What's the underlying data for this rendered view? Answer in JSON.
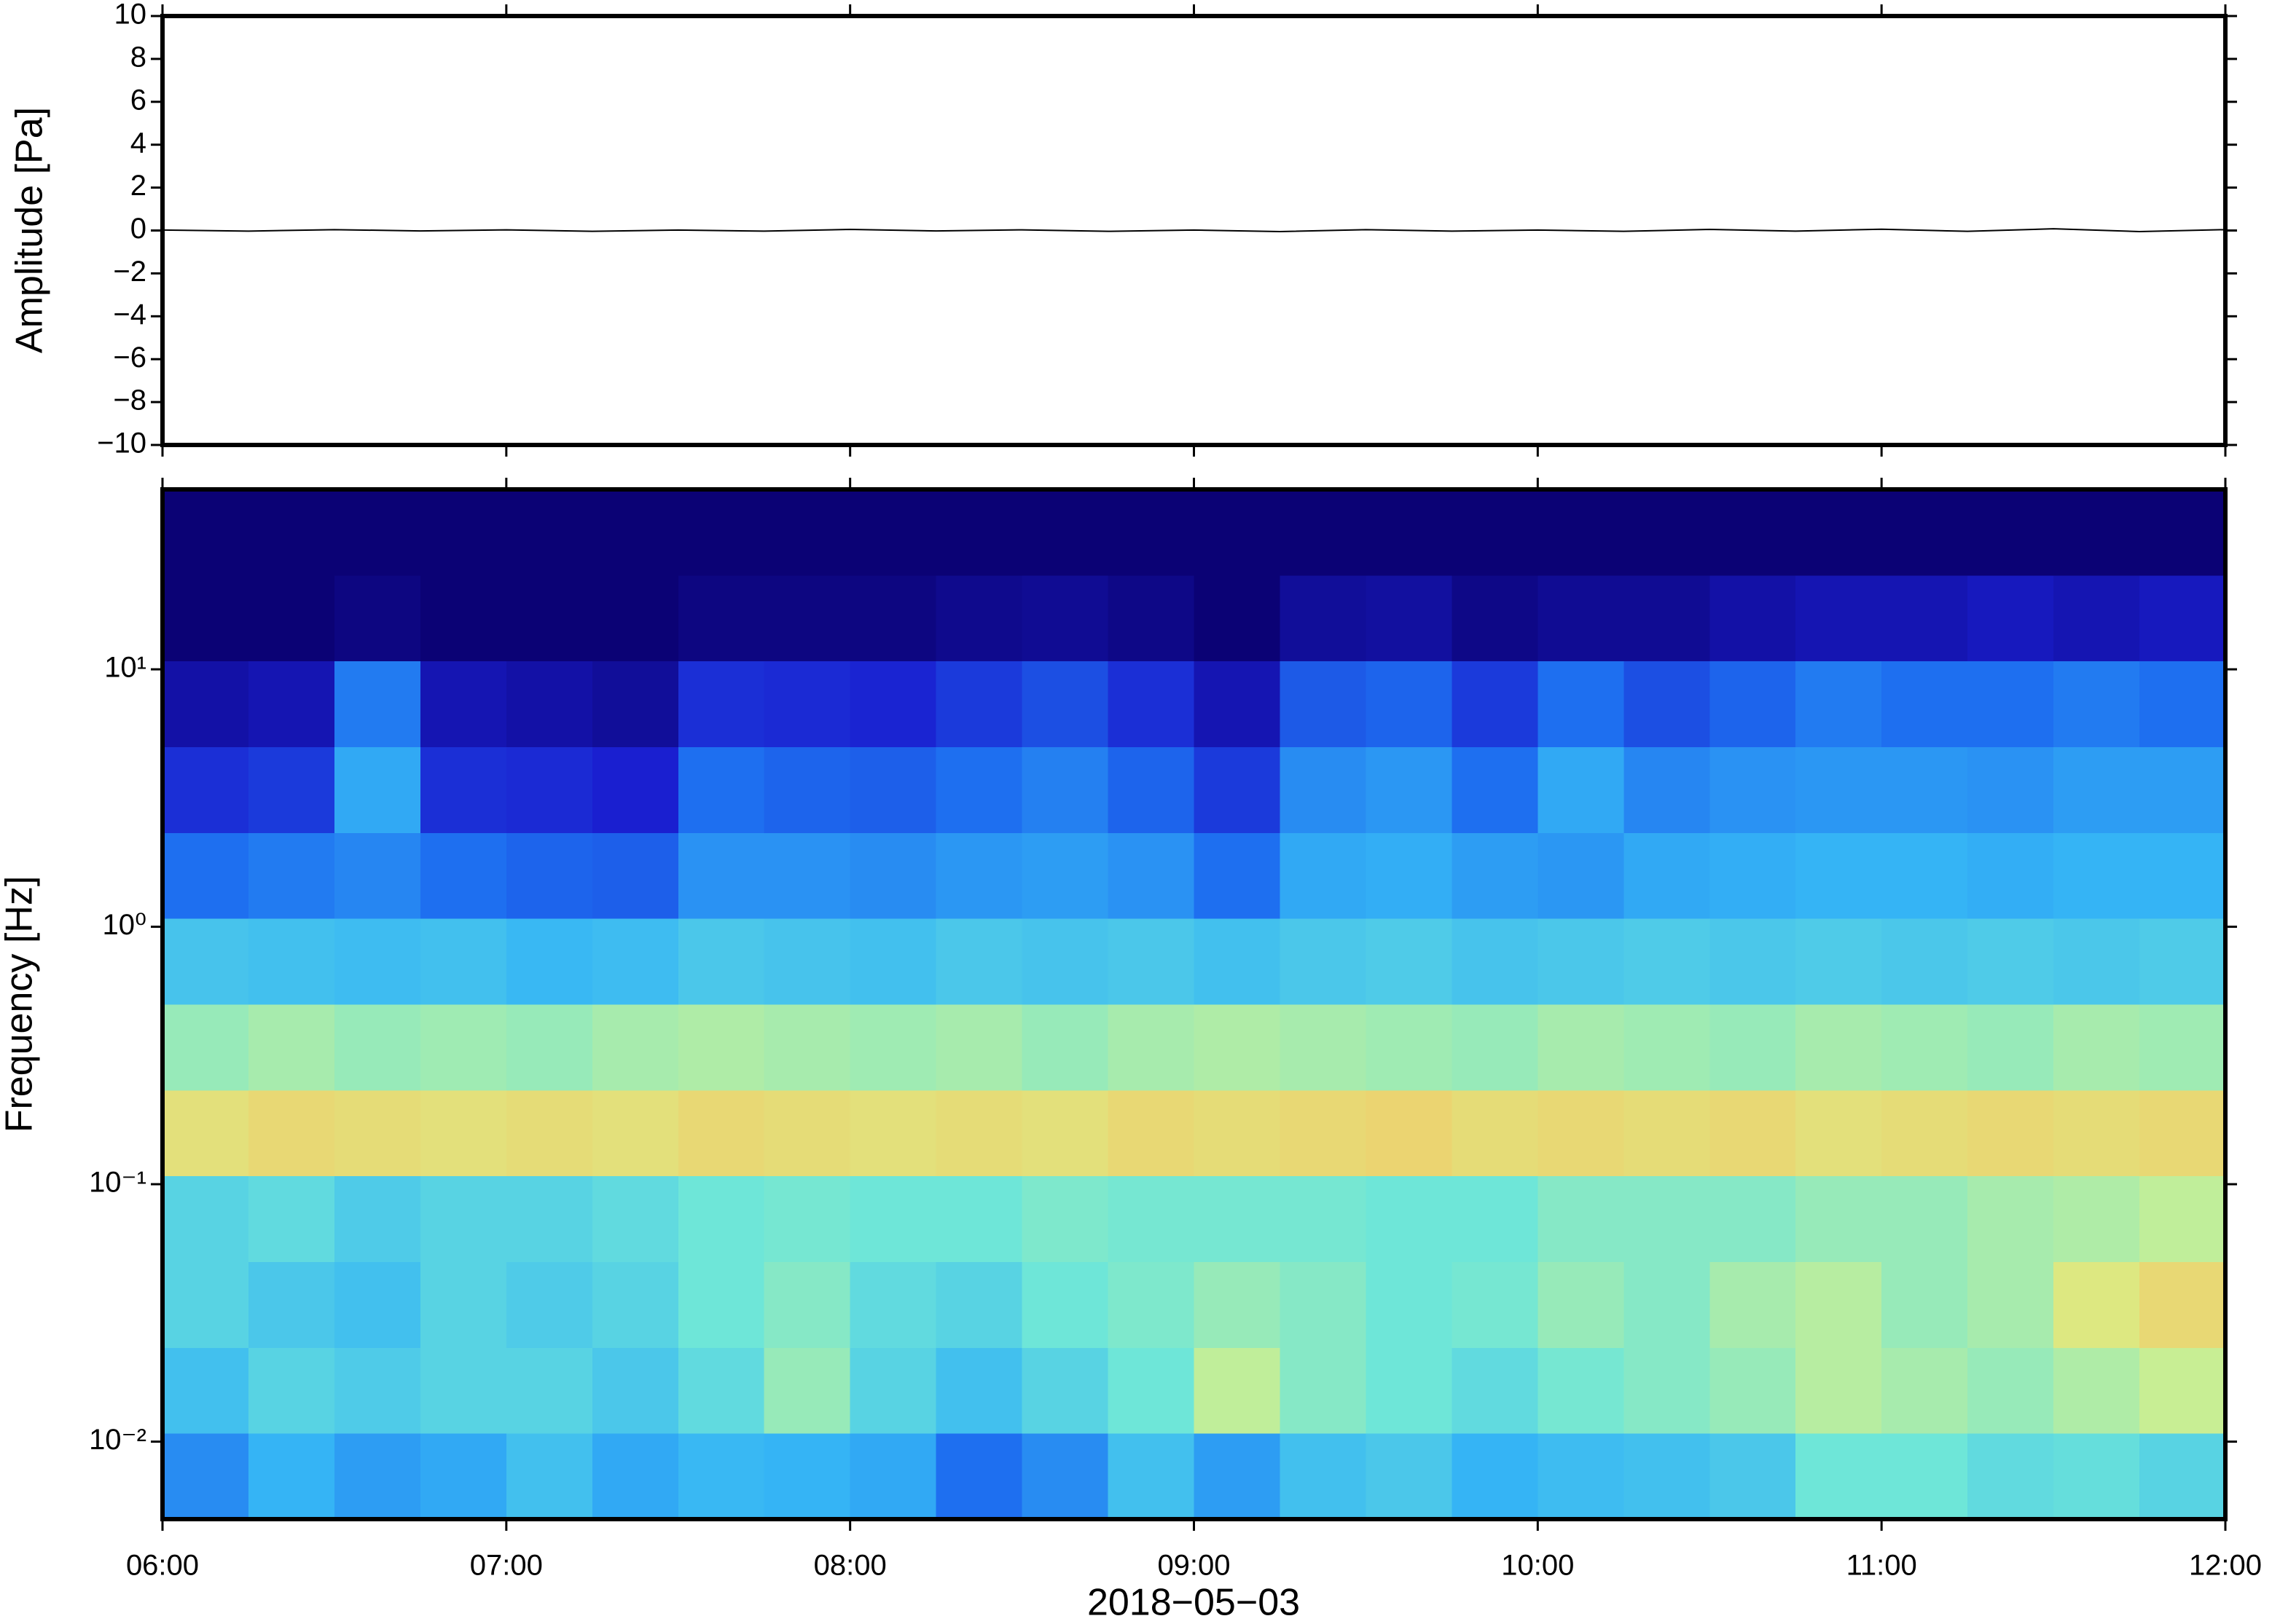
{
  "chart_data": [
    {
      "type": "line",
      "ylabel": "Amplitude [Pa]",
      "color": "#000000",
      "xlim": [
        6,
        12
      ],
      "ylim": [
        -10,
        10
      ],
      "yticks": [
        {
          "value": -10,
          "label": "−10"
        },
        {
          "value": -8,
          "label": "−8"
        },
        {
          "value": -6,
          "label": "−6"
        },
        {
          "value": -4,
          "label": "−4"
        },
        {
          "value": -2,
          "label": "−2"
        },
        0,
        2,
        4,
        6,
        8,
        10
      ],
      "x": [
        6,
        6.25,
        6.5,
        6.75,
        7,
        7.25,
        7.5,
        7.75,
        8,
        8.25,
        8.5,
        8.75,
        9,
        9.25,
        9.5,
        9.75,
        10,
        10.25,
        10.5,
        10.75,
        11,
        11.25,
        11.5,
        11.75,
        12
      ],
      "values": [
        0.02,
        -0.03,
        0.04,
        -0.02,
        0.03,
        -0.04,
        0.02,
        -0.03,
        0.05,
        -0.02,
        0.03,
        -0.04,
        0.02,
        -0.05,
        0.04,
        -0.03,
        0.02,
        -0.04,
        0.05,
        -0.03,
        0.06,
        -0.04,
        0.08,
        -0.05,
        0.04
      ]
    },
    {
      "type": "heatmap",
      "ylabel": "Frequency [Hz]",
      "xlabel": "2018−05−03",
      "log_y": true,
      "xlim": [
        6,
        12
      ],
      "ylim": [
        0.005,
        50
      ],
      "xticks": [
        {
          "value": 6,
          "label": "06:00"
        },
        {
          "value": 7,
          "label": "07:00"
        },
        {
          "value": 8,
          "label": "08:00"
        },
        {
          "value": 9,
          "label": "09:00"
        },
        {
          "value": 10,
          "label": "10:00"
        },
        {
          "value": 11,
          "label": "11:00"
        },
        {
          "value": 12,
          "label": "12:00"
        }
      ],
      "yticks": [
        {
          "value": 0.01,
          "label": "10⁻²"
        },
        {
          "value": 0.1,
          "label": "10⁻¹"
        },
        {
          "value": 1,
          "label": "10⁰"
        },
        {
          "value": 10,
          "label": "10¹"
        }
      ],
      "colormap": [
        [
          0,
          "#0b0275"
        ],
        [
          0.15,
          "#1a1fd0"
        ],
        [
          0.3,
          "#1e6ff0"
        ],
        [
          0.42,
          "#35b4f5"
        ],
        [
          0.55,
          "#6ee6d8"
        ],
        [
          0.68,
          "#d8f088"
        ],
        [
          0.8,
          "#f8c060"
        ],
        [
          0.9,
          "#f07040"
        ],
        [
          1,
          "#c01010"
        ]
      ],
      "xbins": [
        6,
        6.25,
        6.5,
        6.75,
        7,
        7.25,
        7.5,
        7.75,
        8,
        8.25,
        8.5,
        8.75,
        9,
        9.25,
        9.5,
        9.75,
        10,
        10.25,
        10.5,
        10.75,
        11,
        11.25,
        11.5,
        11.75,
        12
      ],
      "ybins": [
        0.005,
        0.0108,
        0.0232,
        0.05,
        0.108,
        0.232,
        0.5,
        1.08,
        2.32,
        5,
        10.8,
        23.2,
        50
      ],
      "z": [
        [
          0.35,
          0.42,
          0.38,
          0.4,
          0.45,
          0.4,
          0.43,
          0.42,
          0.4,
          0.3,
          0.35,
          0.45,
          0.38,
          0.45,
          0.47,
          0.42,
          0.44,
          0.45,
          0.47,
          0.55,
          0.55,
          0.52,
          0.53,
          0.5
        ],
        [
          0.45,
          0.5,
          0.48,
          0.5,
          0.5,
          0.47,
          0.52,
          0.6,
          0.5,
          0.45,
          0.5,
          0.55,
          0.65,
          0.58,
          0.55,
          0.52,
          0.56,
          0.58,
          0.6,
          0.64,
          0.62,
          0.6,
          0.63,
          0.66
        ],
        [
          0.5,
          0.47,
          0.45,
          0.5,
          0.48,
          0.5,
          0.55,
          0.58,
          0.52,
          0.5,
          0.55,
          0.57,
          0.6,
          0.58,
          0.55,
          0.56,
          0.6,
          0.58,
          0.62,
          0.64,
          0.6,
          0.62,
          0.7,
          0.74
        ],
        [
          0.5,
          0.52,
          0.48,
          0.5,
          0.5,
          0.52,
          0.55,
          0.56,
          0.55,
          0.55,
          0.57,
          0.56,
          0.56,
          0.56,
          0.55,
          0.55,
          0.58,
          0.58,
          0.58,
          0.6,
          0.6,
          0.62,
          0.63,
          0.65
        ],
        [
          0.72,
          0.74,
          0.73,
          0.72,
          0.73,
          0.72,
          0.74,
          0.73,
          0.72,
          0.73,
          0.72,
          0.74,
          0.73,
          0.74,
          0.75,
          0.73,
          0.74,
          0.73,
          0.74,
          0.72,
          0.73,
          0.74,
          0.73,
          0.74
        ],
        [
          0.6,
          0.62,
          0.6,
          0.61,
          0.6,
          0.62,
          0.63,
          0.62,
          0.61,
          0.62,
          0.6,
          0.62,
          0.63,
          0.62,
          0.61,
          0.6,
          0.62,
          0.61,
          0.6,
          0.62,
          0.61,
          0.6,
          0.62,
          0.61
        ],
        [
          0.46,
          0.45,
          0.44,
          0.45,
          0.43,
          0.44,
          0.47,
          0.46,
          0.45,
          0.47,
          0.46,
          0.47,
          0.45,
          0.47,
          0.48,
          0.46,
          0.47,
          0.48,
          0.47,
          0.48,
          0.47,
          0.48,
          0.47,
          0.48
        ],
        [
          0.3,
          0.32,
          0.34,
          0.3,
          0.28,
          0.27,
          0.36,
          0.36,
          0.35,
          0.37,
          0.38,
          0.36,
          0.3,
          0.4,
          0.41,
          0.38,
          0.37,
          0.4,
          0.41,
          0.42,
          0.42,
          0.41,
          0.42,
          0.42
        ],
        [
          0.18,
          0.2,
          0.4,
          0.18,
          0.17,
          0.15,
          0.3,
          0.28,
          0.27,
          0.3,
          0.33,
          0.28,
          0.2,
          0.35,
          0.37,
          0.3,
          0.4,
          0.34,
          0.36,
          0.37,
          0.37,
          0.36,
          0.38,
          0.38
        ],
        [
          0.08,
          0.1,
          0.32,
          0.1,
          0.08,
          0.06,
          0.18,
          0.17,
          0.16,
          0.2,
          0.24,
          0.18,
          0.1,
          0.26,
          0.28,
          0.2,
          0.3,
          0.24,
          0.28,
          0.32,
          0.3,
          0.3,
          0.32,
          0.3
        ],
        [
          0,
          0,
          0.02,
          0,
          0,
          0,
          0.02,
          0.02,
          0.02,
          0.04,
          0.05,
          0.03,
          0,
          0.06,
          0.07,
          0.03,
          0.05,
          0.05,
          0.08,
          0.1,
          0.1,
          0.12,
          0.1,
          0.12
        ],
        [
          0,
          0,
          0,
          0,
          0,
          0,
          0,
          0,
          0,
          0,
          0,
          0,
          0,
          0,
          0,
          0,
          0,
          0,
          0,
          0,
          0,
          0,
          0,
          0
        ]
      ]
    }
  ]
}
